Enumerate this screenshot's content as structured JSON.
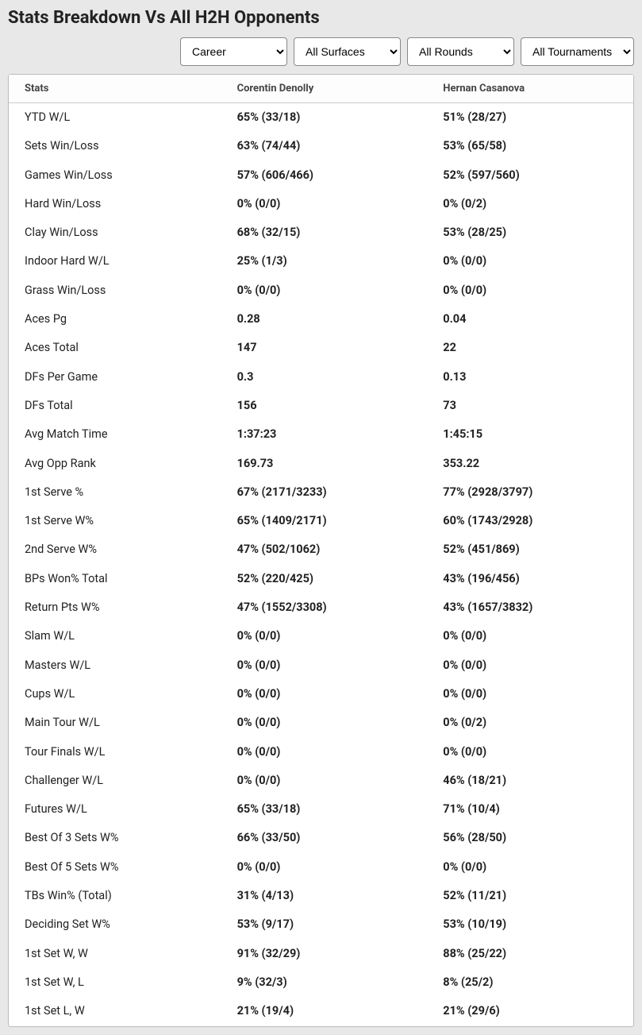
{
  "title": "Stats Breakdown Vs All H2H Opponents",
  "filters": {
    "career": "Career",
    "surface": "All Surfaces",
    "rounds": "All Rounds",
    "tournaments": "All Tournaments"
  },
  "headers": {
    "stats": "Stats",
    "player1": "Corentin Denolly",
    "player2": "Hernan Casanova"
  },
  "rows": [
    {
      "stat": "YTD W/L",
      "p1": "65% (33/18)",
      "p2": "51% (28/27)"
    },
    {
      "stat": "Sets Win/Loss",
      "p1": "63% (74/44)",
      "p2": "53% (65/58)"
    },
    {
      "stat": "Games Win/Loss",
      "p1": "57% (606/466)",
      "p2": "52% (597/560)"
    },
    {
      "stat": "Hard Win/Loss",
      "p1": "0% (0/0)",
      "p2": "0% (0/2)"
    },
    {
      "stat": "Clay Win/Loss",
      "p1": "68% (32/15)",
      "p2": "53% (28/25)"
    },
    {
      "stat": "Indoor Hard W/L",
      "p1": "25% (1/3)",
      "p2": "0% (0/0)"
    },
    {
      "stat": "Grass Win/Loss",
      "p1": "0% (0/0)",
      "p2": "0% (0/0)"
    },
    {
      "stat": "Aces Pg",
      "p1": "0.28",
      "p2": "0.04"
    },
    {
      "stat": "Aces Total",
      "p1": "147",
      "p2": "22"
    },
    {
      "stat": "DFs Per Game",
      "p1": "0.3",
      "p2": "0.13"
    },
    {
      "stat": "DFs Total",
      "p1": "156",
      "p2": "73"
    },
    {
      "stat": "Avg Match Time",
      "p1": "1:37:23",
      "p2": "1:45:15"
    },
    {
      "stat": "Avg Opp Rank",
      "p1": "169.73",
      "p2": "353.22"
    },
    {
      "stat": "1st Serve %",
      "p1": "67% (2171/3233)",
      "p2": "77% (2928/3797)"
    },
    {
      "stat": "1st Serve W%",
      "p1": "65% (1409/2171)",
      "p2": "60% (1743/2928)"
    },
    {
      "stat": "2nd Serve W%",
      "p1": "47% (502/1062)",
      "p2": "52% (451/869)"
    },
    {
      "stat": "BPs Won% Total",
      "p1": "52% (220/425)",
      "p2": "43% (196/456)"
    },
    {
      "stat": "Return Pts W%",
      "p1": "47% (1552/3308)",
      "p2": "43% (1657/3832)"
    },
    {
      "stat": "Slam W/L",
      "p1": "0% (0/0)",
      "p2": "0% (0/0)"
    },
    {
      "stat": "Masters W/L",
      "p1": "0% (0/0)",
      "p2": "0% (0/0)"
    },
    {
      "stat": "Cups W/L",
      "p1": "0% (0/0)",
      "p2": "0% (0/0)"
    },
    {
      "stat": "Main Tour W/L",
      "p1": "0% (0/0)",
      "p2": "0% (0/2)"
    },
    {
      "stat": "Tour Finals W/L",
      "p1": "0% (0/0)",
      "p2": "0% (0/0)"
    },
    {
      "stat": "Challenger W/L",
      "p1": "0% (0/0)",
      "p2": "46% (18/21)"
    },
    {
      "stat": "Futures W/L",
      "p1": "65% (33/18)",
      "p2": "71% (10/4)"
    },
    {
      "stat": "Best Of 3 Sets W%",
      "p1": "66% (33/50)",
      "p2": "56% (28/50)"
    },
    {
      "stat": "Best Of 5 Sets W%",
      "p1": "0% (0/0)",
      "p2": "0% (0/0)"
    },
    {
      "stat": "TBs Win% (Total)",
      "p1": "31% (4/13)",
      "p2": "52% (11/21)"
    },
    {
      "stat": "Deciding Set W%",
      "p1": "53% (9/17)",
      "p2": "53% (10/19)"
    },
    {
      "stat": "1st Set W, W",
      "p1": "91% (32/29)",
      "p2": "88% (25/22)"
    },
    {
      "stat": "1st Set W, L",
      "p1": "9% (32/3)",
      "p2": "8% (25/2)"
    },
    {
      "stat": "1st Set L, W",
      "p1": "21% (19/4)",
      "p2": "21% (29/6)"
    }
  ]
}
